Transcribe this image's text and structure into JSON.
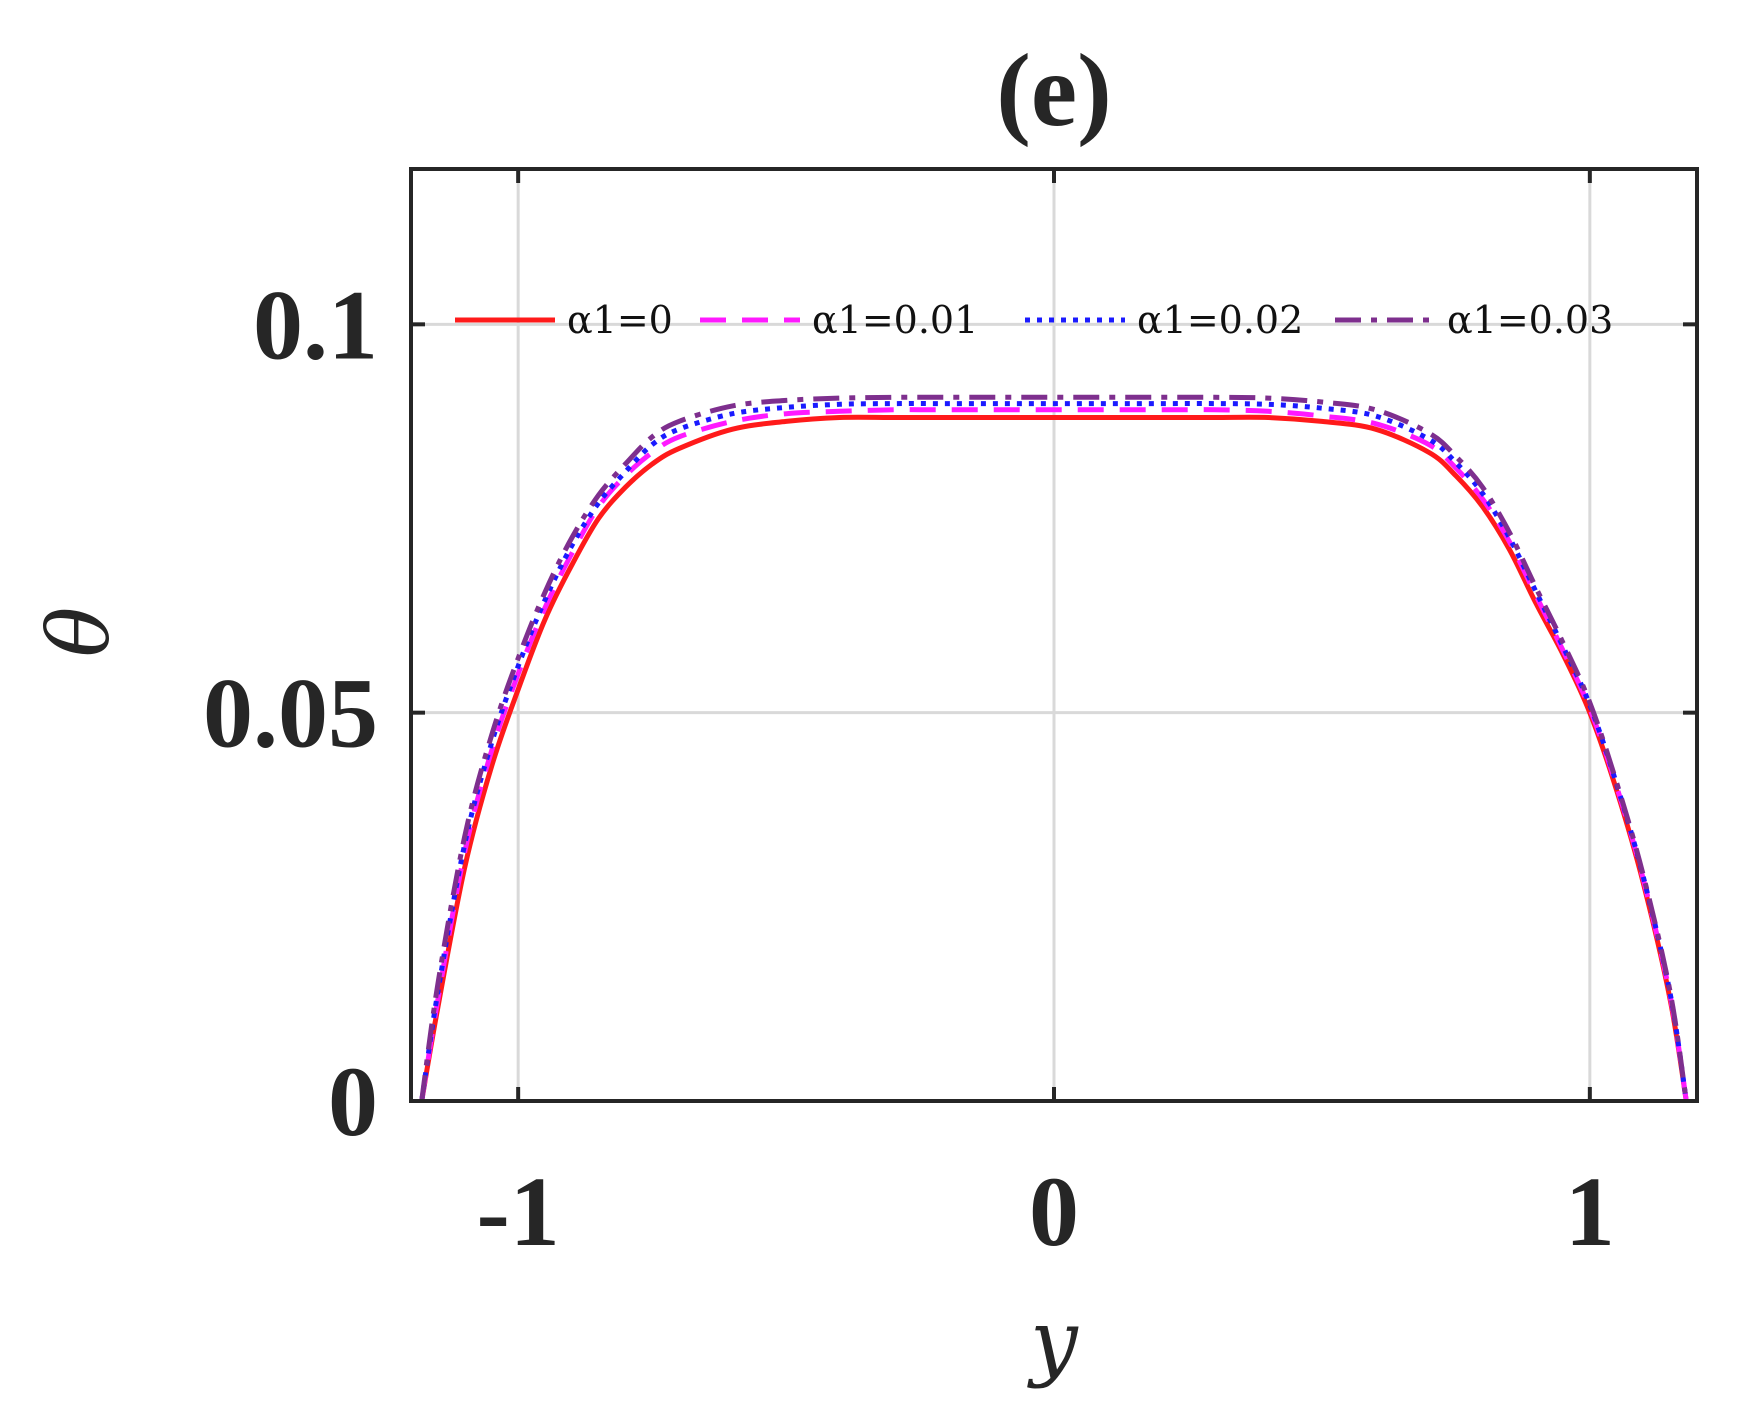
{
  "chart_data": {
    "type": "line",
    "title": "(e)",
    "xlabel": "y",
    "ylabel": "θ",
    "xlim": [
      -1.2,
      1.2
    ],
    "ylim": [
      0,
      0.12
    ],
    "xticks": [
      -1,
      0,
      1
    ],
    "xtick_labels": [
      "-1",
      "0",
      "1"
    ],
    "yticks": [
      0,
      0.05,
      0.1
    ],
    "ytick_labels": [
      "0",
      "0.05",
      "0.1"
    ],
    "grid": true,
    "legend_position": "top",
    "legend_orientation": "horizontal",
    "x": [
      -1.18,
      -1.15,
      -1.1,
      -1.05,
      -1.0,
      -0.95,
      -0.9,
      -0.85,
      -0.8,
      -0.75,
      -0.7,
      -0.6,
      -0.5,
      -0.4,
      -0.3,
      -0.2,
      -0.1,
      0.0,
      0.1,
      0.2,
      0.3,
      0.4,
      0.5,
      0.6,
      0.7,
      0.75,
      0.8,
      0.85,
      0.9,
      0.95,
      1.0,
      1.05,
      1.1,
      1.15,
      1.18
    ],
    "series": [
      {
        "name": "α1=0",
        "color": "#ff1a1a",
        "dash": "solid",
        "values": [
          0.0,
          0.012,
          0.03,
          0.043,
          0.053,
          0.062,
          0.069,
          0.075,
          0.079,
          0.082,
          0.084,
          0.0865,
          0.0875,
          0.088,
          0.088,
          0.088,
          0.088,
          0.088,
          0.088,
          0.088,
          0.088,
          0.088,
          0.0875,
          0.0865,
          0.0835,
          0.0805,
          0.0765,
          0.071,
          0.064,
          0.0575,
          0.05,
          0.04,
          0.028,
          0.013,
          0.0
        ]
      },
      {
        "name": "α1=0.01",
        "color": "#ff19ff",
        "dash": "dashed",
        "values": [
          0.0,
          0.013,
          0.032,
          0.045,
          0.055,
          0.0635,
          0.0705,
          0.0765,
          0.0805,
          0.0835,
          0.0855,
          0.0875,
          0.0885,
          0.0888,
          0.089,
          0.089,
          0.089,
          0.089,
          0.089,
          0.089,
          0.089,
          0.0888,
          0.0882,
          0.0872,
          0.0845,
          0.0815,
          0.0775,
          0.072,
          0.065,
          0.058,
          0.0505,
          0.0405,
          0.0285,
          0.0135,
          0.0
        ]
      },
      {
        "name": "α1=0.02",
        "color": "#1a1aff",
        "dash": "dotted",
        "values": [
          0.0,
          0.014,
          0.033,
          0.046,
          0.056,
          0.0645,
          0.0715,
          0.077,
          0.081,
          0.0845,
          0.0865,
          0.0885,
          0.0893,
          0.0897,
          0.0898,
          0.0898,
          0.0898,
          0.0898,
          0.0898,
          0.0898,
          0.0898,
          0.0897,
          0.0892,
          0.0882,
          0.0852,
          0.0822,
          0.0782,
          0.0725,
          0.0655,
          0.0585,
          0.051,
          0.0408,
          0.0288,
          0.0138,
          0.0
        ]
      },
      {
        "name": "α1=0.03",
        "color": "#7e2f8e",
        "dash": "dashdot",
        "values": [
          0.0,
          0.015,
          0.034,
          0.047,
          0.057,
          0.0655,
          0.0725,
          0.078,
          0.082,
          0.0855,
          0.0875,
          0.0895,
          0.0902,
          0.0905,
          0.0906,
          0.0906,
          0.0906,
          0.0906,
          0.0906,
          0.0906,
          0.0906,
          0.0905,
          0.09,
          0.089,
          0.086,
          0.083,
          0.079,
          0.0732,
          0.066,
          0.059,
          0.0513,
          0.041,
          0.029,
          0.014,
          0.0
        ]
      }
    ]
  }
}
